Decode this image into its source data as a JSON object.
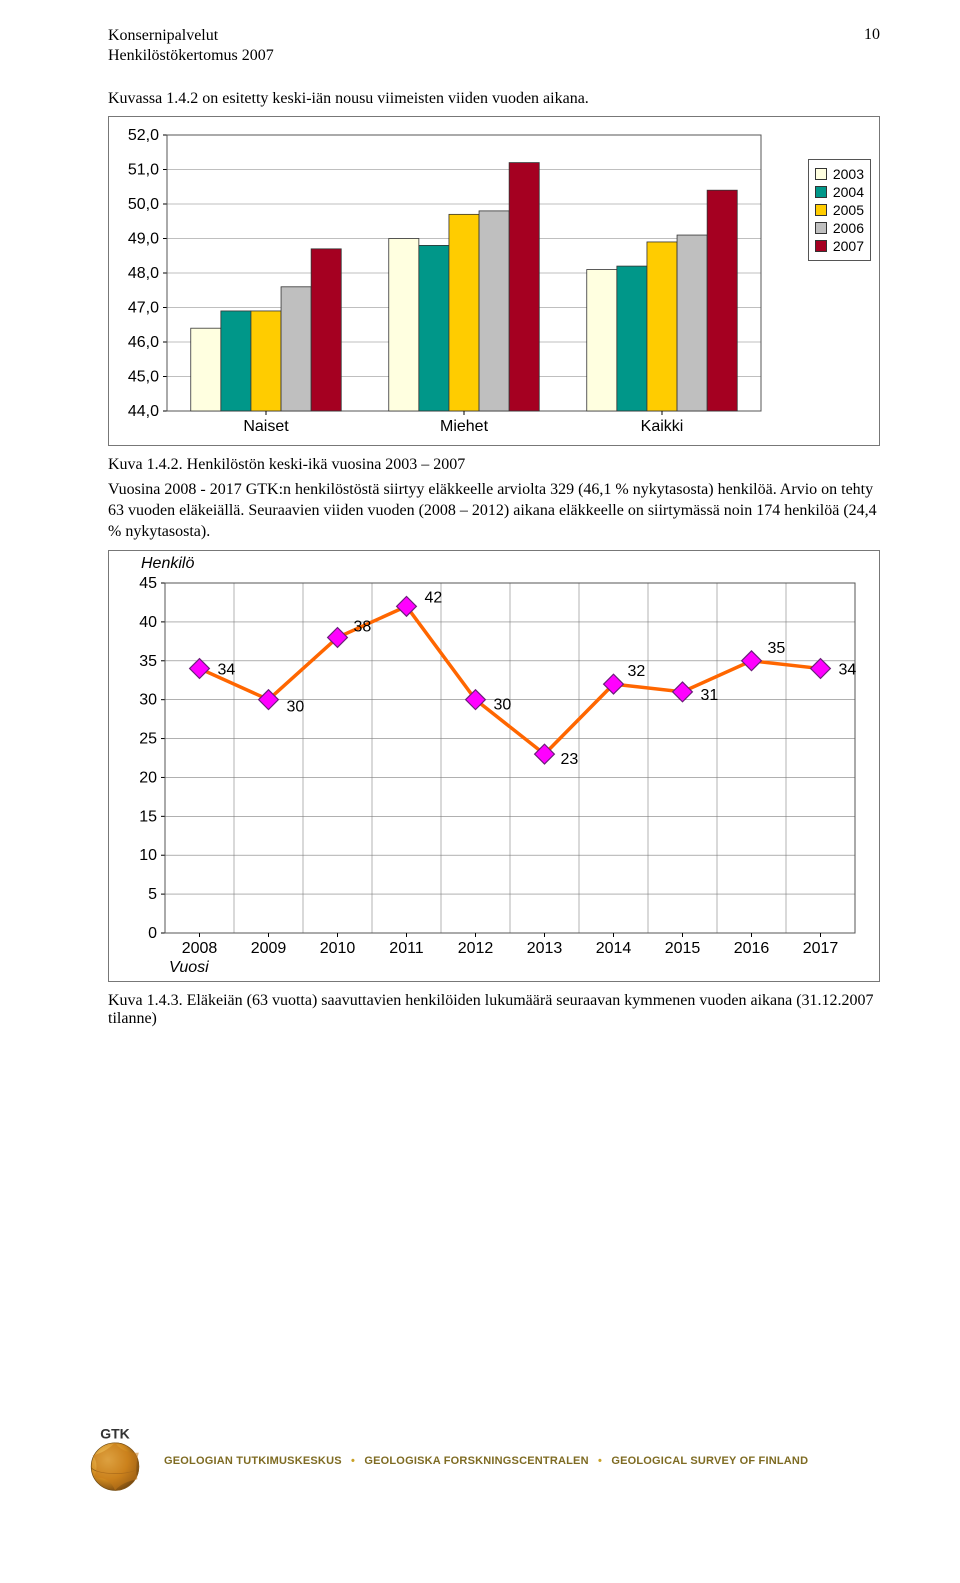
{
  "header": {
    "left1": "Konsernipalvelut",
    "left2": "Henkilöstökertomus 2007",
    "pageno": "10"
  },
  "intro": "Kuvassa 1.4.2 on esitetty keski-iän nousu viimeisten viiden vuoden aikana.",
  "barChart": {
    "type": "bar",
    "categories": [
      "Naiset",
      "Miehet",
      "Kaikki"
    ],
    "series": [
      "2003",
      "2004",
      "2005",
      "2006",
      "2007"
    ],
    "values": {
      "Naiset": [
        46.4,
        46.9,
        46.9,
        47.6,
        48.7
      ],
      "Miehet": [
        49.0,
        48.8,
        49.7,
        49.8,
        51.2
      ],
      "Kaikki": [
        48.1,
        48.2,
        48.9,
        49.1,
        50.4
      ]
    },
    "series_colors": [
      "#ffffe0",
      "#009789",
      "#ffcc00",
      "#bfbfbf",
      "#a50021"
    ],
    "ylim": [
      44.0,
      52.0
    ],
    "ytick_step": 1.0,
    "yticks": [
      "44,0",
      "45,0",
      "46,0",
      "47,0",
      "48,0",
      "49,0",
      "50,0",
      "51,0",
      "52,0"
    ],
    "background_color": "#ffffff",
    "grid_color": "#808080",
    "axis_fontsize": 16,
    "axis_font": "Arial"
  },
  "caption1": "Kuva 1.4.2. Henkilöstön keski-ikä vuosina 2003 – 2007",
  "para1": "Vuosina 2008 - 2017 GTK:n henkilöstöstä siirtyy eläkkeelle arviolta 329 (46,1 % nykytasosta) henkilöä. Arvio on tehty 63 vuoden eläkeiällä. Seuraavien viiden vuoden (2008 – 2012) aikana eläkkeelle on siirtymässä noin 174 henkilöä (24,4 % nykytasosta).",
  "lineChart": {
    "type": "line",
    "x": [
      "2008",
      "2009",
      "2010",
      "2011",
      "2012",
      "2013",
      "2014",
      "2015",
      "2016",
      "2017"
    ],
    "y": [
      34,
      30,
      38,
      42,
      30,
      23,
      32,
      31,
      35,
      34
    ],
    "ylim": [
      0,
      45
    ],
    "ytick_step": 5,
    "yticks": [
      "0",
      "5",
      "10",
      "15",
      "20",
      "25",
      "30",
      "35",
      "40",
      "45"
    ],
    "line_color": "#ff6600",
    "line_width": 3.5,
    "marker_fill": "#ff00ff",
    "marker_stroke": "#6b1e7a",
    "marker_size": 7,
    "label_fontsize": 16,
    "y_axis_title": "Henkilö",
    "x_axis_title": "Vuosi",
    "background_color": "#ffffff",
    "grid_color": "#808080"
  },
  "caption2": "Kuva 1.4.3. Eläkeiän (63 vuotta) saavuttavien henkilöiden lukumäärä seuraavan kymmenen vuoden aikana (31.12.2007 tilanne)",
  "footer": {
    "org1": "GEOLOGIAN TUTKIMUSKESKUS",
    "org2": "GEOLOGISKA FORSKNINGSCENTRALEN",
    "org3": "GEOLOGICAL SURVEY OF FINLAND",
    "logo_text": "GTK"
  }
}
